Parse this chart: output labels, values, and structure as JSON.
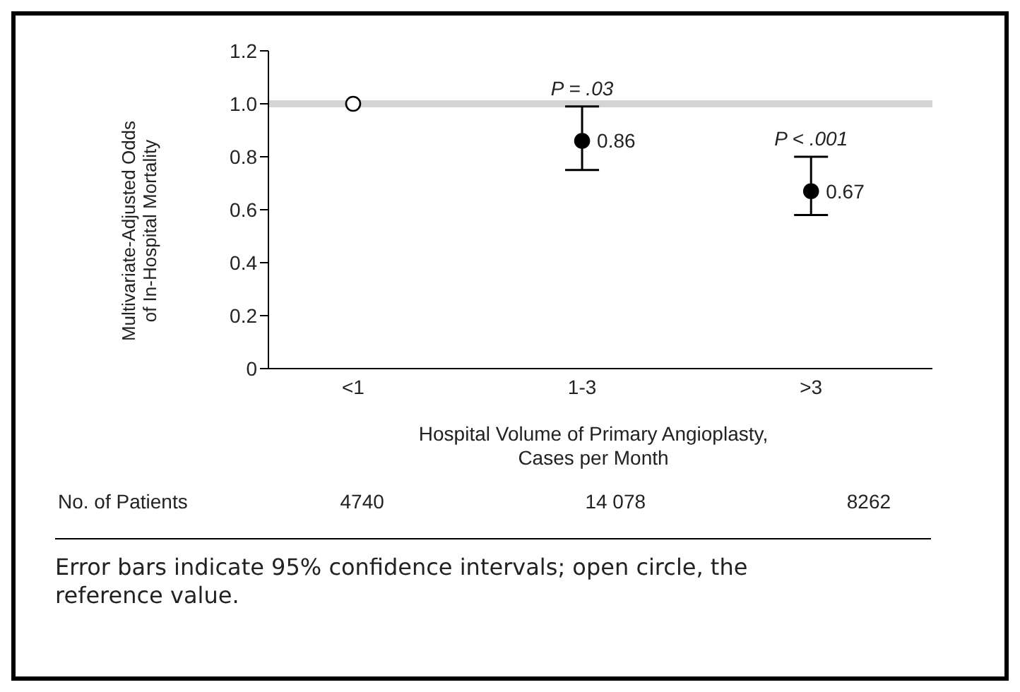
{
  "chart_data": {
    "type": "scatter",
    "xlabel": "Hospital Volume of Primary Angioplasty,\nCases per Month",
    "ylabel": "Multivariate-Adjusted Odds\nof In-Hospital Mortality",
    "categories": [
      "<1",
      "1-3",
      ">3"
    ],
    "values": [
      1.0,
      0.86,
      0.67
    ],
    "colors": [
      "#ffffff",
      "#000000",
      "#000000"
    ],
    "errors": [
      null,
      [
        0.75,
        0.99
      ],
      [
        0.58,
        0.8
      ]
    ],
    "value_labels": [
      null,
      "0.86",
      "0.67"
    ],
    "marker": "circle",
    "ylim": [
      0,
      1.2
    ],
    "yticks": [
      0,
      0.2,
      0.4,
      0.6,
      0.8,
      {
        "value": 1,
        "label": "1.0"
      },
      1.2
    ],
    "ref_lines": [
      {
        "axis": "y",
        "value": 1,
        "color": "#d4d4d4"
      }
    ],
    "grid": false,
    "legend": false,
    "annotations": [
      "P = .03",
      "P < .001",
      "No. of Patients",
      "4740",
      "14 078",
      "8262",
      "Error bars indicate 95% confidence intervals; open circle, the reference value."
    ]
  }
}
